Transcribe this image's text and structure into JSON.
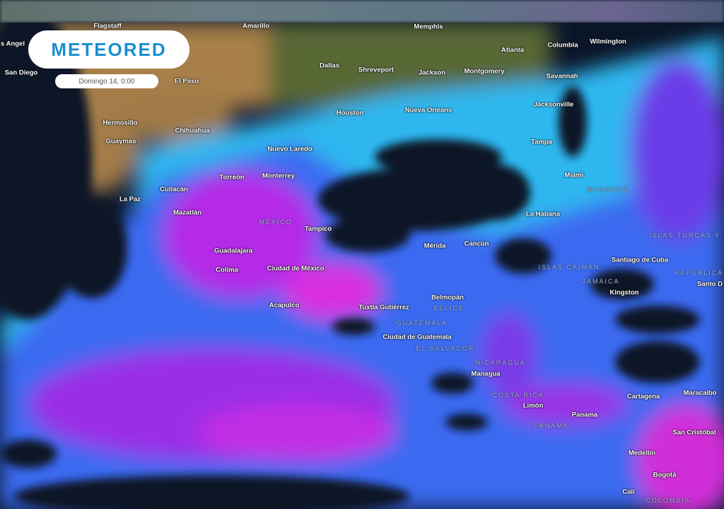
{
  "brand": {
    "logo_text": "METEORED",
    "date_label": "Domingo 14, 0:00"
  },
  "colors": {
    "ocean": "#0b1528",
    "rain_light": "#2fc2f5",
    "rain_mid": "#3b5cf0",
    "rain_heavy": "#c81cf0",
    "rain_extreme": "#ff2fb0",
    "land_desert": "#b88a4e",
    "land_green": "#5d6b35",
    "logo": "#1a8fd0"
  },
  "cities": [
    "Flagstaff",
    "Amarillo",
    "Memphis",
    "Atlanta",
    "Columbia",
    "Wilmington",
    "s Angel",
    "San Diego",
    "El Paso",
    "Dallas",
    "Shreveport",
    "Jackson",
    "Montgomery",
    "Savannah",
    "Jacksonville",
    "Houston",
    "Nueva Orleans",
    "Hermosillo",
    "Chihuahua",
    "Guaymas",
    "Nuevo Laredo",
    "Tampa",
    "Torreón",
    "Monterrey",
    "Miami",
    "Culiacán",
    "La Paz",
    "Mazatlán",
    "La Habana",
    "Tampico",
    "Mérida",
    "Cancún",
    "Guadalajara",
    "Santiago de Cuba",
    "Colima",
    "Ciudad de México",
    "Santo D",
    "Kingston",
    "Belmopán",
    "Acapulco",
    "Tuxtla Gutiérrez",
    "Ciudad de Guatemala",
    "Managua",
    "Cartagena",
    "Maracaibo",
    "Limón",
    "Panama",
    "San Cristóbal",
    "Medellín",
    "Bogotá",
    "Cali"
  ],
  "countries": [
    "BAHAMAS",
    "MÉXICO",
    "ISLAS TURCAS Y C",
    "ISLAS CAIMÁN",
    "REPÚBLICA D",
    "JAMAICA",
    "BELICE",
    "GUATEMALA",
    "EL SALVADOR",
    "NICARAGUA",
    "COSTA RICA",
    "PANAMA",
    "COLOMBIA"
  ]
}
